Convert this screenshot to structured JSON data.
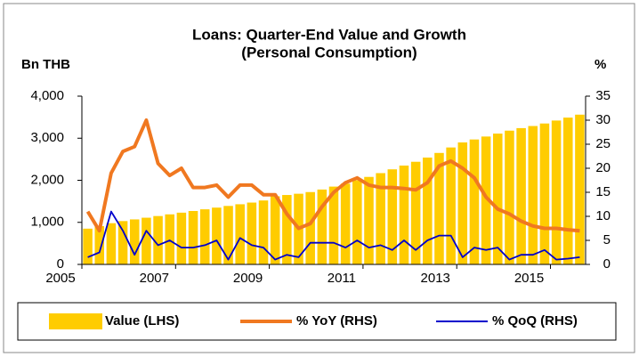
{
  "chart_data": {
    "type": "bar-line",
    "title": "Loans: Quarter-End Value and Growth",
    "subtitle": "(Personal Consumption)",
    "y_label": "Bn THB",
    "y2_label": "%",
    "categories": [
      "2005",
      null,
      null,
      null,
      null,
      null,
      null,
      null,
      "2007",
      null,
      null,
      null,
      null,
      null,
      null,
      null,
      "2009",
      null,
      null,
      null,
      null,
      null,
      null,
      null,
      "2011",
      null,
      null,
      null,
      null,
      null,
      null,
      null,
      "2013",
      null,
      null,
      null,
      null,
      null,
      null,
      null,
      "2015",
      null,
      null
    ],
    "series": [
      {
        "name": "Value (LHS)",
        "kind": "bar",
        "color": "#FFCC00",
        "axis": "y",
        "values": [
          850,
          910,
          980,
          1030,
          1070,
          1110,
          1150,
          1190,
          1230,
          1270,
          1310,
          1350,
          1390,
          1430,
          1470,
          1520,
          1620,
          1650,
          1680,
          1720,
          1780,
          1850,
          1920,
          2000,
          2080,
          2170,
          2260,
          2350,
          2440,
          2540,
          2650,
          2780,
          2900,
          2970,
          3040,
          3110,
          3180,
          3240,
          3290,
          3350,
          3420,
          3490,
          3560
        ]
      },
      {
        "name": "% YoY (RHS)",
        "kind": "line",
        "color": "#F07820",
        "axis": "y2",
        "values": [
          11,
          7,
          19,
          23.5,
          24.5,
          30,
          21,
          18.5,
          20,
          16,
          16,
          16.5,
          14,
          16.5,
          16.5,
          14.5,
          14.5,
          10.5,
          7.5,
          8.5,
          12,
          15,
          17,
          18,
          16.5,
          16,
          16,
          15.8,
          15.5,
          17,
          20.5,
          21.5,
          20,
          18,
          14,
          11.5,
          10.5,
          9,
          8,
          7.5,
          7.5,
          7.2,
          7
        ]
      },
      {
        "name": "% QoQ (RHS)",
        "kind": "line",
        "color": "#0000CC",
        "axis": "y2",
        "values": [
          1.5,
          2.5,
          11,
          7,
          2,
          7,
          4,
          5,
          3.5,
          3.5,
          4,
          5,
          1,
          5.5,
          4,
          3.5,
          1,
          2,
          1.5,
          4.5,
          4.5,
          4.5,
          3.5,
          5,
          3.5,
          4,
          3,
          5,
          3,
          5,
          6,
          6,
          1.5,
          3.5,
          3,
          3.5,
          1,
          2,
          2,
          3,
          1,
          1.2,
          1.5
        ]
      }
    ],
    "ylim": [
      0,
      4000
    ],
    "yticks": [
      0,
      {
        "value": 1000,
        "label": "1,000"
      },
      {
        "value": 2000,
        "label": "2,000"
      },
      {
        "value": 3000,
        "label": "3,000"
      },
      {
        "value": 4000,
        "label": "4,000"
      }
    ],
    "y2lim": [
      0,
      35
    ],
    "y2ticks": [
      0,
      5,
      10,
      15,
      20,
      25,
      30,
      35
    ],
    "legend": "bottom"
  }
}
